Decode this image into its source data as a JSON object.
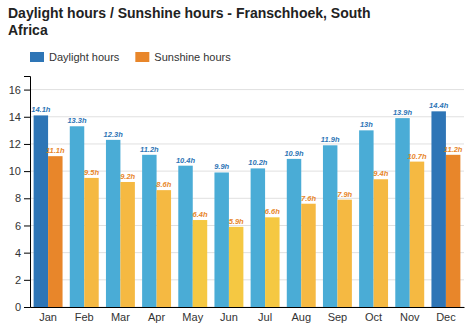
{
  "chart_data": {
    "type": "bar",
    "title": "Daylight hours / Sunshine hours - Franschhoek, South\nAfrica",
    "categories": [
      "Jan",
      "Feb",
      "Mar",
      "Apr",
      "May",
      "Jun",
      "Jul",
      "Aug",
      "Sep",
      "Oct",
      "Nov",
      "Dec"
    ],
    "series": [
      {
        "name": "Daylight hours",
        "color": "#2e75b6",
        "colors": [
          "#2e75b6",
          "#4aacd6",
          "#4aacd6",
          "#4aacd6",
          "#4aacd6",
          "#4aacd6",
          "#4aacd6",
          "#4aacd6",
          "#4aacd6",
          "#4aacd6",
          "#4aacd6",
          "#2e75b6"
        ],
        "values": [
          14.1,
          13.3,
          12.3,
          11.2,
          10.4,
          9.9,
          10.2,
          10.9,
          11.9,
          13.0,
          13.9,
          14.4
        ],
        "value_labels": [
          "14.1h",
          "13.3h",
          "12.3h",
          "11.2h",
          "10.4h",
          "9.9h",
          "10.2h",
          "10.9h",
          "11.9h",
          "13h",
          "13.9h",
          "14.4h"
        ]
      },
      {
        "name": "Sunshine hours",
        "color": "#e8862a",
        "colors": [
          "#e8862a",
          "#f5b942",
          "#f5b942",
          "#f5b942",
          "#f5c842",
          "#f5c842",
          "#f5c842",
          "#f5b942",
          "#f5b942",
          "#f5b942",
          "#f5b942",
          "#e8862a"
        ],
        "values": [
          11.1,
          9.5,
          9.2,
          8.6,
          6.4,
          5.9,
          6.6,
          7.6,
          7.9,
          9.4,
          10.7,
          11.2
        ],
        "value_labels": [
          "11.1h",
          "9.5h",
          "9.2h",
          "8.6h",
          "6.4h",
          "5.9h",
          "6.6h",
          "7.6h",
          "7.9h",
          "9.4h",
          "10.7h",
          "11.2h"
        ]
      }
    ],
    "ylim": [
      0,
      17
    ],
    "yticks": [
      0,
      2,
      4,
      6,
      8,
      10,
      12,
      14,
      16
    ],
    "grid": true,
    "legend": "upper left",
    "data_labels": true
  }
}
